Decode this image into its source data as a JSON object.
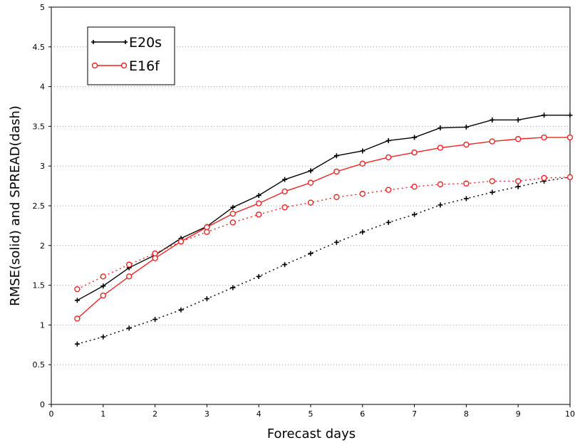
{
  "chart_data": {
    "type": "line",
    "title": "",
    "xlabel": "Forecast days",
    "ylabel": "RMSE(solid) and SPREAD(dash)",
    "xlim": [
      0,
      10
    ],
    "ylim": [
      0,
      5
    ],
    "x_ticks": [
      "0",
      "1",
      "2",
      "3",
      "4",
      "5",
      "6",
      "7",
      "8",
      "9",
      "10"
    ],
    "y_ticks": [
      "0",
      "0.5",
      "1",
      "1.5",
      "2",
      "2.5",
      "3",
      "3.5",
      "4",
      "4.5",
      "5"
    ],
    "grid": "horizontal dotted",
    "legend_position": "top-left",
    "x": [
      0.5,
      1,
      1.5,
      2,
      2.5,
      3,
      3.5,
      4,
      4.5,
      5,
      5.5,
      6,
      6.5,
      7,
      7.5,
      8,
      8.5,
      9,
      9.5,
      10
    ],
    "series": [
      {
        "name": "E20s",
        "color": "#000000",
        "marker": "plus",
        "rmse": [
          1.31,
          1.49,
          1.72,
          1.88,
          2.09,
          2.24,
          2.48,
          2.63,
          2.83,
          2.94,
          3.13,
          3.19,
          3.32,
          3.36,
          3.48,
          3.49,
          3.58,
          3.58,
          3.64,
          3.64
        ],
        "spread": [
          0.76,
          0.85,
          0.96,
          1.07,
          1.19,
          1.33,
          1.47,
          1.61,
          1.76,
          1.9,
          2.04,
          2.17,
          2.29,
          2.39,
          2.51,
          2.59,
          2.67,
          2.74,
          2.81,
          2.86
        ]
      },
      {
        "name": "E16f",
        "color": "#ee2222",
        "marker": "circle",
        "rmse": [
          1.08,
          1.37,
          1.61,
          1.84,
          2.05,
          2.23,
          2.4,
          2.53,
          2.68,
          2.79,
          2.93,
          3.03,
          3.11,
          3.17,
          3.23,
          3.27,
          3.31,
          3.34,
          3.36,
          3.36
        ],
        "spread": [
          1.45,
          1.61,
          1.76,
          1.9,
          2.05,
          2.17,
          2.29,
          2.39,
          2.48,
          2.54,
          2.61,
          2.65,
          2.7,
          2.74,
          2.77,
          2.78,
          2.81,
          2.81,
          2.85,
          2.86
        ]
      }
    ]
  }
}
